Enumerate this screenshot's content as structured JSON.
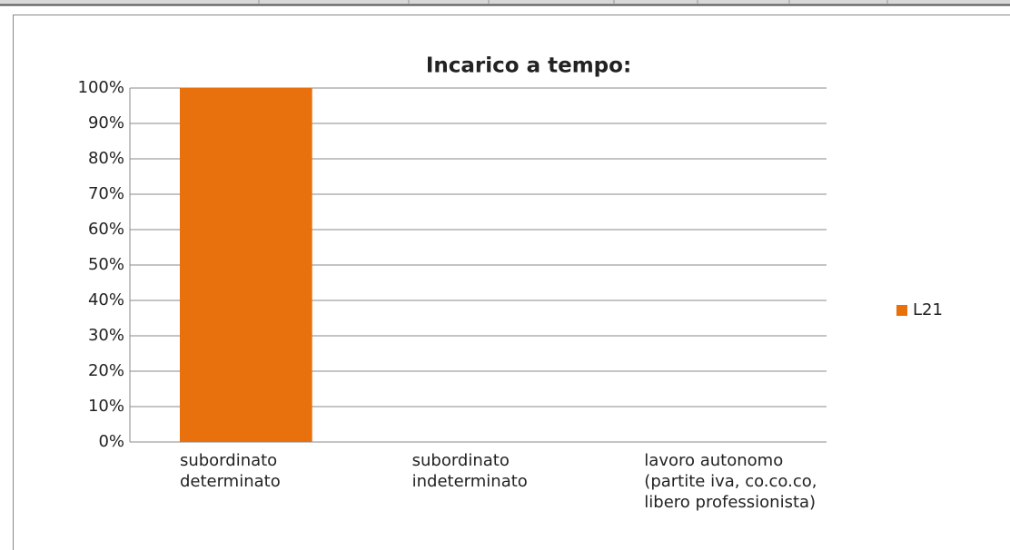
{
  "chart_data": {
    "type": "bar",
    "title": "Incarico a tempo:",
    "categories": [
      "subordinato determinato",
      "subordinato indeterminato",
      "lavoro autonomo (partite iva, co.co.co, libero professionista)"
    ],
    "series": [
      {
        "name": "L21",
        "color": "#e8710d",
        "values": [
          100,
          0,
          0
        ]
      }
    ],
    "ylim": [
      0,
      100
    ],
    "yticks": [
      {
        "value": 0,
        "label": "0%"
      },
      {
        "value": 10,
        "label": "10%"
      },
      {
        "value": 20,
        "label": "20%"
      },
      {
        "value": 30,
        "label": "30%"
      },
      {
        "value": 40,
        "label": "40%"
      },
      {
        "value": 50,
        "label": "50%"
      },
      {
        "value": 60,
        "label": "60%"
      },
      {
        "value": 70,
        "label": "70%"
      },
      {
        "value": 80,
        "label": "80%"
      },
      {
        "value": 90,
        "label": "90%"
      },
      {
        "value": 100,
        "label": "100%"
      }
    ],
    "grid": true,
    "legend": "right"
  }
}
